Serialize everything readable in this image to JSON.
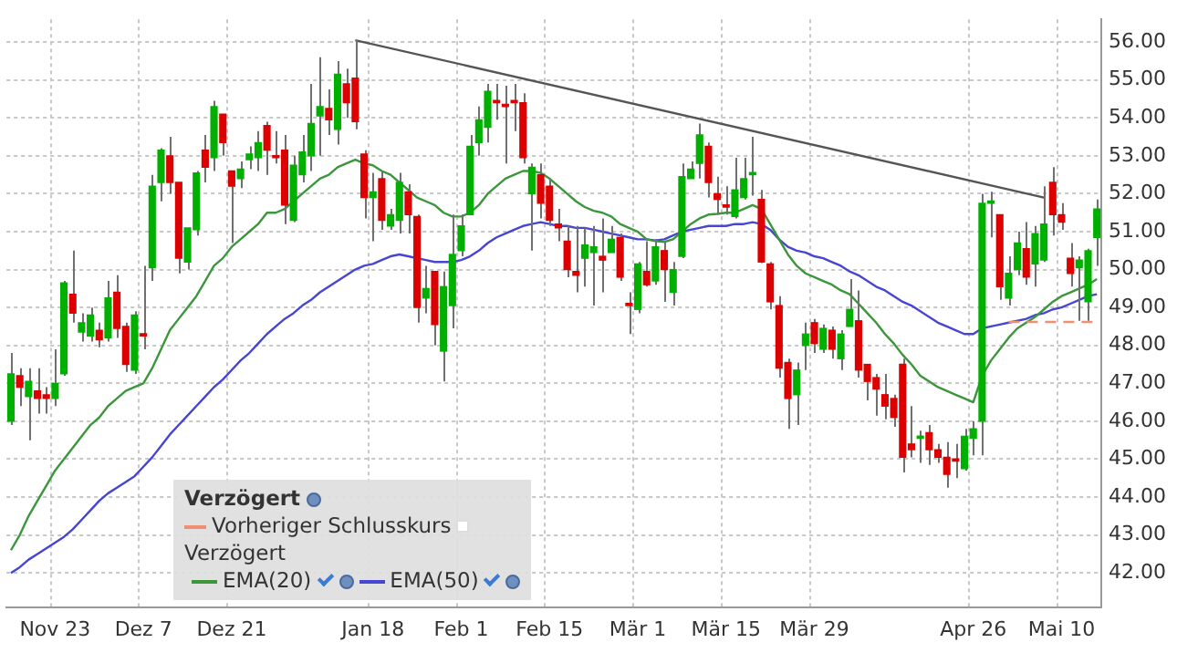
{
  "chart_data": {
    "type": "candlestick",
    "legend": "bottom left",
    "legend_title": "Verzögert",
    "annotations": [
      "Verzögert"
    ],
    "grid": true,
    "marker": "none",
    "categories": [
      null,
      null,
      null,
      null,
      null,
      "Nov 23",
      null,
      null,
      null,
      null,
      null,
      null,
      null,
      null,
      null,
      "Dez 7",
      null,
      null,
      null,
      null,
      null,
      null,
      null,
      null,
      null,
      "Dez 21",
      null,
      null,
      null,
      null,
      null,
      null,
      null,
      null,
      null,
      null,
      null,
      null,
      null,
      null,
      null,
      "Jan 18",
      null,
      null,
      null,
      null,
      null,
      null,
      null,
      null,
      null,
      "Feb 1",
      null,
      null,
      null,
      null,
      null,
      null,
      null,
      null,
      null,
      "Feb 15",
      null,
      null,
      null,
      null,
      null,
      null,
      null,
      null,
      null,
      "Mär 1",
      null,
      null,
      null,
      null,
      null,
      null,
      null,
      null,
      null,
      "Mär 15",
      null,
      null,
      null,
      null,
      null,
      null,
      null,
      null,
      null,
      "Mär 29",
      null,
      null,
      null,
      null,
      null,
      null,
      null,
      null,
      null,
      null,
      null,
      null,
      null,
      null,
      null,
      null,
      null,
      "Apr 26",
      null,
      null,
      null,
      null,
      null,
      null,
      null,
      null,
      null,
      "Mai 10",
      null,
      null,
      null,
      null
    ],
    "ohlc": [
      [
        46.0,
        47.8,
        45.9,
        47.25
      ],
      [
        47.2,
        47.4,
        46.4,
        46.9
      ],
      [
        46.65,
        47.4,
        45.5,
        47.05
      ],
      [
        46.8,
        47.4,
        46.2,
        46.6
      ],
      [
        46.7,
        46.9,
        46.2,
        46.6
      ],
      [
        46.6,
        47.9,
        46.4,
        47.0
      ],
      [
        47.25,
        49.7,
        47.2,
        49.65
      ],
      [
        49.35,
        50.5,
        48.6,
        48.85
      ],
      [
        48.35,
        48.85,
        48.1,
        48.6
      ],
      [
        48.25,
        49.0,
        48.1,
        48.8
      ],
      [
        48.4,
        48.6,
        47.95,
        48.15
      ],
      [
        48.2,
        49.7,
        48.1,
        49.25
      ],
      [
        49.4,
        49.85,
        48.2,
        48.45
      ],
      [
        48.5,
        48.6,
        47.3,
        47.5
      ],
      [
        47.35,
        48.9,
        47.25,
        48.8
      ],
      [
        48.3,
        50.1,
        47.9,
        48.25
      ],
      [
        50.05,
        52.5,
        49.7,
        52.2
      ],
      [
        52.3,
        53.2,
        51.8,
        53.15
      ],
      [
        53.0,
        53.5,
        52.0,
        52.3
      ],
      [
        52.3,
        52.3,
        49.9,
        50.3
      ],
      [
        50.2,
        51.1,
        50.0,
        51.1
      ],
      [
        51.05,
        52.6,
        50.9,
        52.55
      ],
      [
        53.15,
        53.55,
        52.3,
        52.7
      ],
      [
        52.95,
        54.45,
        52.6,
        54.3
      ],
      [
        54.1,
        54.1,
        53.0,
        53.35
      ],
      [
        52.6,
        52.6,
        50.7,
        52.2
      ],
      [
        52.4,
        52.85,
        52.15,
        52.65
      ],
      [
        52.9,
        53.25,
        52.65,
        53.05
      ],
      [
        52.95,
        53.65,
        52.6,
        53.35
      ],
      [
        53.8,
        53.9,
        52.5,
        53.15
      ],
      [
        53.0,
        53.65,
        52.8,
        52.95
      ],
      [
        53.15,
        53.55,
        51.2,
        51.7
      ],
      [
        51.3,
        53.0,
        51.25,
        52.75
      ],
      [
        52.5,
        53.55,
        52.3,
        53.1
      ],
      [
        53.0,
        54.9,
        52.6,
        53.85
      ],
      [
        54.05,
        55.6,
        53.0,
        54.3
      ],
      [
        54.25,
        54.75,
        53.55,
        53.95
      ],
      [
        53.7,
        55.5,
        53.3,
        55.15
      ],
      [
        54.9,
        55.3,
        54.0,
        54.4
      ],
      [
        55.05,
        56.05,
        53.7,
        53.9
      ],
      [
        53.05,
        53.15,
        51.35,
        51.9
      ],
      [
        51.9,
        52.55,
        50.75,
        52.05
      ],
      [
        52.4,
        52.6,
        51.05,
        51.3
      ],
      [
        51.15,
        51.6,
        51.05,
        51.45
      ],
      [
        51.3,
        52.55,
        50.95,
        52.3
      ],
      [
        52.05,
        52.25,
        50.95,
        51.45
      ],
      [
        51.4,
        51.45,
        48.6,
        49.0
      ],
      [
        49.25,
        50.1,
        48.85,
        49.5
      ],
      [
        49.95,
        49.95,
        48.0,
        48.55
      ],
      [
        47.85,
        49.95,
        47.05,
        49.55
      ],
      [
        49.05,
        51.45,
        48.45,
        50.4
      ],
      [
        50.5,
        51.45,
        50.35,
        51.15
      ],
      [
        51.45,
        53.55,
        51.45,
        53.25
      ],
      [
        53.35,
        54.3,
        53.0,
        53.95
      ],
      [
        53.75,
        54.9,
        53.35,
        54.7
      ],
      [
        54.45,
        54.9,
        53.95,
        54.4
      ],
      [
        54.35,
        54.85,
        52.8,
        54.3
      ],
      [
        54.45,
        54.9,
        53.65,
        54.4
      ],
      [
        54.4,
        54.65,
        52.8,
        52.95
      ],
      [
        52.0,
        52.8,
        50.5,
        52.7
      ],
      [
        52.5,
        52.8,
        51.35,
        51.75
      ],
      [
        52.2,
        52.4,
        51.15,
        51.3
      ],
      [
        51.2,
        51.6,
        50.75,
        51.1
      ],
      [
        50.75,
        51.15,
        49.8,
        50.0
      ],
      [
        49.95,
        51.15,
        49.4,
        49.85
      ],
      [
        50.3,
        51.1,
        49.55,
        50.65
      ],
      [
        50.45,
        51.15,
        49.05,
        50.6
      ],
      [
        50.35,
        51.35,
        49.4,
        50.25
      ],
      [
        50.45,
        51.15,
        50.45,
        50.8
      ],
      [
        50.85,
        50.95,
        49.7,
        49.8
      ],
      [
        49.1,
        49.4,
        48.3,
        49.05
      ],
      [
        48.95,
        50.2,
        48.85,
        50.15
      ],
      [
        49.95,
        50.75,
        49.55,
        49.6
      ],
      [
        49.7,
        50.8,
        49.6,
        50.6
      ],
      [
        50.5,
        50.75,
        49.15,
        50.0
      ],
      [
        49.4,
        50.2,
        49.05,
        50.0
      ],
      [
        50.35,
        52.8,
        50.3,
        52.45
      ],
      [
        52.4,
        52.85,
        52.4,
        52.65
      ],
      [
        52.8,
        53.85,
        52.4,
        53.55
      ],
      [
        53.25,
        53.35,
        51.9,
        52.3
      ],
      [
        52.0,
        52.45,
        51.45,
        51.85
      ],
      [
        51.7,
        52.2,
        51.45,
        51.65
      ],
      [
        51.4,
        52.95,
        51.35,
        52.1
      ],
      [
        51.9,
        52.95,
        51.85,
        52.4
      ],
      [
        52.5,
        53.5,
        51.95,
        52.55
      ],
      [
        51.85,
        52.1,
        50.17,
        50.2
      ],
      [
        50.15,
        50.2,
        48.95,
        49.15
      ],
      [
        49.05,
        49.3,
        47.15,
        47.4
      ],
      [
        47.55,
        47.65,
        45.8,
        46.6
      ],
      [
        46.7,
        47.55,
        45.9,
        47.35
      ],
      [
        48.0,
        48.6,
        47.35,
        48.3
      ],
      [
        48.6,
        48.7,
        47.8,
        48.05
      ],
      [
        47.9,
        48.55,
        47.8,
        48.45
      ],
      [
        48.4,
        48.5,
        47.65,
        47.9
      ],
      [
        47.65,
        48.4,
        47.35,
        48.3
      ],
      [
        48.5,
        49.75,
        48.5,
        48.95
      ],
      [
        48.65,
        49.45,
        47.15,
        47.35
      ],
      [
        47.5,
        47.5,
        46.55,
        47.05
      ],
      [
        47.15,
        47.25,
        46.15,
        46.85
      ],
      [
        46.7,
        47.25,
        46.05,
        46.4
      ],
      [
        46.6,
        46.7,
        45.85,
        46.1
      ],
      [
        47.5,
        47.65,
        44.65,
        45.05
      ],
      [
        45.4,
        46.4,
        45.05,
        45.25
      ],
      [
        45.55,
        45.75,
        44.9,
        45.6
      ],
      [
        45.7,
        45.9,
        44.85,
        45.25
      ],
      [
        45.25,
        45.4,
        44.9,
        45.05
      ],
      [
        45.05,
        45.45,
        44.25,
        44.6
      ],
      [
        45.0,
        45.4,
        44.5,
        44.95
      ],
      [
        44.75,
        45.8,
        44.7,
        45.6
      ],
      [
        45.55,
        46.0,
        45.1,
        45.8
      ],
      [
        46.0,
        52.0,
        45.1,
        51.75
      ],
      [
        51.75,
        52.05,
        50.85,
        51.8
      ],
      [
        51.45,
        51.45,
        49.2,
        49.55
      ],
      [
        49.25,
        50.35,
        49.05,
        49.9
      ],
      [
        50.0,
        51.0,
        49.85,
        50.7
      ],
      [
        50.55,
        51.25,
        49.6,
        49.8
      ],
      [
        50.15,
        51.15,
        49.55,
        50.95
      ],
      [
        50.25,
        52.2,
        50.2,
        51.2
      ],
      [
        52.3,
        52.7,
        50.9,
        51.45
      ],
      [
        51.45,
        51.75,
        51.05,
        51.25
      ],
      [
        50.3,
        50.7,
        49.55,
        49.9
      ],
      [
        50.05,
        50.35,
        48.65,
        50.25
      ],
      [
        49.15,
        50.55,
        48.65,
        50.5
      ],
      [
        50.85,
        51.85,
        50.1,
        51.6
      ]
    ],
    "colors": [
      "#00b000",
      "#dd0000",
      "#00b000",
      "#dd0000",
      "#dd0000",
      "#00b000",
      "#00b000",
      "#dd0000",
      "#00b000",
      "#00b000",
      "#dd0000",
      "#00b000",
      "#dd0000",
      "#dd0000",
      "#00b000",
      "#dd0000",
      "#00b000",
      "#00b000",
      "#dd0000",
      "#dd0000",
      "#00b000",
      "#00b000",
      "#dd0000",
      "#00b000",
      "#dd0000",
      "#dd0000",
      "#00b000",
      "#00b000",
      "#00b000",
      "#dd0000",
      "#dd0000",
      "#dd0000",
      "#00b000",
      "#00b000",
      "#00b000",
      "#00b000",
      "#dd0000",
      "#00b000",
      "#dd0000",
      "#dd0000",
      "#dd0000",
      "#00b000",
      "#dd0000",
      "#00b000",
      "#00b000",
      "#dd0000",
      "#dd0000",
      "#00b000",
      "#dd0000",
      "#00b000",
      "#00b000",
      "#00b000",
      "#00b000",
      "#00b000",
      "#00b000",
      "#dd0000",
      "#dd0000",
      "#dd0000",
      "#dd0000",
      "#00b000",
      "#dd0000",
      "#dd0000",
      "#dd0000",
      "#dd0000",
      "#dd0000",
      "#00b000",
      "#00b000",
      "#dd0000",
      "#00b000",
      "#dd0000",
      "#dd0000",
      "#00b000",
      "#dd0000",
      "#00b000",
      "#dd0000",
      "#00b000",
      "#00b000",
      "#00b000",
      "#00b000",
      "#dd0000",
      "#dd0000",
      "#dd0000",
      "#00b000",
      "#00b000",
      "#00b000",
      "#dd0000",
      "#dd0000",
      "#dd0000",
      "#dd0000",
      "#00b000",
      "#00b000",
      "#dd0000",
      "#00b000",
      "#dd0000",
      "#00b000",
      "#00b000",
      "#dd0000",
      "#dd0000",
      "#dd0000",
      "#dd0000",
      "#dd0000",
      "#dd0000",
      "#dd0000",
      "#00b000",
      "#dd0000",
      "#dd0000",
      "#dd0000",
      "#dd0000",
      "#00b000",
      "#00b000",
      "#00b000",
      "#00b000",
      "#dd0000",
      "#00b000",
      "#00b000",
      "#dd0000",
      "#00b000",
      "#00b000",
      "#dd0000",
      "#dd0000",
      "#dd0000",
      "#00b000",
      "#00b000",
      "#00b000"
    ],
    "series": [
      {
        "name": "Vorheriger Schlusskurs",
        "type": "line",
        "line_style": "dashed",
        "color": "#f09070",
        "values": [
          null,
          null,
          null,
          null,
          null,
          null,
          null,
          null,
          null,
          null,
          null,
          null,
          null,
          null,
          null,
          null,
          null,
          null,
          null,
          null,
          null,
          null,
          null,
          null,
          null,
          null,
          null,
          null,
          null,
          null,
          null,
          null,
          null,
          null,
          null,
          null,
          null,
          null,
          null,
          null,
          null,
          null,
          null,
          null,
          null,
          null,
          null,
          null,
          null,
          null,
          null,
          null,
          null,
          null,
          null,
          null,
          null,
          null,
          null,
          null,
          null,
          null,
          null,
          null,
          null,
          null,
          null,
          null,
          null,
          null,
          null,
          null,
          null,
          null,
          null,
          null,
          null,
          null,
          null,
          null,
          null,
          null,
          null,
          null,
          null,
          null,
          null,
          null,
          null,
          null,
          null,
          null,
          null,
          null,
          null,
          null,
          null,
          null,
          null,
          null,
          null,
          null,
          null,
          null,
          null,
          null,
          null,
          null,
          null,
          null,
          null,
          null,
          null,
          48.62,
          48.62,
          48.62,
          48.62,
          48.62,
          48.62,
          48.62,
          48.62,
          48.62,
          48.62,
          48.62
        ]
      },
      {
        "name": "EMA(20)",
        "type": "line",
        "line_style": "solid",
        "color": "#3c963c",
        "values": [
          42.6,
          43.0,
          43.5,
          43.9,
          44.3,
          44.7,
          45.0,
          45.3,
          45.6,
          45.9,
          46.1,
          46.4,
          46.6,
          46.8,
          46.9,
          47.0,
          47.4,
          47.9,
          48.4,
          48.7,
          49.0,
          49.3,
          49.7,
          50.1,
          50.3,
          50.6,
          50.8,
          51.0,
          51.2,
          51.5,
          51.5,
          51.6,
          51.8,
          52.0,
          52.2,
          52.4,
          52.5,
          52.7,
          52.8,
          52.9,
          52.8,
          52.75,
          52.6,
          52.5,
          52.3,
          52.1,
          51.9,
          51.8,
          51.7,
          51.5,
          51.4,
          51.4,
          51.5,
          51.7,
          52.0,
          52.2,
          52.4,
          52.5,
          52.6,
          52.6,
          52.55,
          52.4,
          52.2,
          52.0,
          51.8,
          51.65,
          51.55,
          51.5,
          51.4,
          51.2,
          51.1,
          51.0,
          50.8,
          50.75,
          50.73,
          50.8,
          51.0,
          51.2,
          51.35,
          51.45,
          51.47,
          51.5,
          51.5,
          51.6,
          51.7,
          51.6,
          51.2,
          50.8,
          50.4,
          50.1,
          49.9,
          49.8,
          49.7,
          49.6,
          49.45,
          49.35,
          49.1,
          48.85,
          48.6,
          48.3,
          48.05,
          47.75,
          47.5,
          47.2,
          47.05,
          46.9,
          46.8,
          46.7,
          46.6,
          46.5,
          47.2,
          47.6,
          47.9,
          48.2,
          48.45,
          48.6,
          48.75,
          48.95,
          49.15,
          49.3,
          49.4,
          49.5,
          49.6,
          49.75
        ]
      },
      {
        "name": "EMA(50)",
        "type": "line",
        "line_style": "solid",
        "color": "#4646d2",
        "values": [
          42.0,
          42.15,
          42.35,
          42.5,
          42.65,
          42.8,
          42.95,
          43.15,
          43.4,
          43.65,
          43.9,
          44.1,
          44.25,
          44.4,
          44.55,
          44.8,
          45.05,
          45.35,
          45.65,
          45.9,
          46.15,
          46.4,
          46.65,
          46.9,
          47.1,
          47.35,
          47.6,
          47.8,
          48.05,
          48.3,
          48.5,
          48.7,
          48.85,
          49.05,
          49.2,
          49.4,
          49.55,
          49.7,
          49.85,
          50.0,
          50.1,
          50.15,
          50.25,
          50.35,
          50.4,
          50.35,
          50.3,
          50.25,
          50.2,
          50.2,
          50.2,
          50.25,
          50.35,
          50.5,
          50.7,
          50.85,
          50.95,
          51.05,
          51.15,
          51.2,
          51.25,
          51.2,
          51.15,
          51.15,
          51.1,
          51.1,
          51.05,
          51.0,
          50.95,
          50.9,
          50.85,
          50.8,
          50.8,
          50.77,
          50.8,
          50.9,
          51.0,
          51.05,
          51.1,
          51.15,
          51.15,
          51.15,
          51.2,
          51.2,
          51.25,
          51.2,
          51.05,
          50.8,
          50.6,
          50.5,
          50.45,
          50.35,
          50.3,
          50.2,
          50.1,
          49.95,
          49.85,
          49.7,
          49.55,
          49.45,
          49.3,
          49.15,
          49.05,
          48.9,
          48.75,
          48.6,
          48.5,
          48.4,
          48.3,
          48.3,
          48.45,
          48.5,
          48.55,
          48.6,
          48.65,
          48.7,
          48.8,
          48.85,
          48.95,
          49.0,
          49.1,
          49.2,
          49.3,
          49.35
        ]
      },
      {
        "type": "line",
        "line_style": "solid",
        "color": "#555555",
        "values": [
          null,
          null,
          null,
          null,
          null,
          null,
          null,
          null,
          null,
          null,
          null,
          null,
          null,
          null,
          null,
          null,
          null,
          null,
          null,
          null,
          null,
          null,
          null,
          null,
          null,
          null,
          null,
          null,
          null,
          null,
          null,
          null,
          null,
          null,
          null,
          null,
          null,
          null,
          null,
          56.05,
          null,
          null,
          null,
          null,
          null,
          null,
          null,
          null,
          null,
          null,
          null,
          null,
          null,
          null,
          null,
          null,
          null,
          null,
          null,
          null,
          null,
          null,
          null,
          null,
          null,
          null,
          null,
          null,
          null,
          null,
          null,
          null,
          null,
          null,
          null,
          null,
          null,
          null,
          null,
          null,
          null,
          null,
          null,
          null,
          null,
          null,
          null,
          null,
          null,
          null,
          null,
          null,
          null,
          null,
          null,
          null,
          null,
          null,
          null,
          null,
          null,
          null,
          null,
          null,
          null,
          null,
          null,
          null,
          null,
          null,
          null,
          null,
          null,
          null,
          null,
          null,
          null,
          51.9,
          null,
          null,
          null,
          null,
          null,
          null
        ]
      }
    ],
    "ylim": [
      41.1,
      56.6
    ],
    "yticks": [
      {
        "value": 42,
        "label": "42.00"
      },
      {
        "value": 43,
        "label": "43.00"
      },
      {
        "value": 44,
        "label": "44.00"
      },
      {
        "value": 45,
        "label": "45.00"
      },
      {
        "value": 46,
        "label": "46.00"
      },
      {
        "value": 47,
        "label": "47.00"
      },
      {
        "value": 48,
        "label": "48.00"
      },
      {
        "value": 49,
        "label": "49.00"
      },
      {
        "value": 50,
        "label": "50.00"
      },
      {
        "value": 51,
        "label": "51.00"
      },
      {
        "value": 52,
        "label": "52.00"
      },
      {
        "value": 53,
        "label": "53.00"
      },
      {
        "value": 54,
        "label": "54.00"
      },
      {
        "value": 55,
        "label": "55.00"
      },
      {
        "value": 56,
        "label": "56.00"
      }
    ]
  }
}
